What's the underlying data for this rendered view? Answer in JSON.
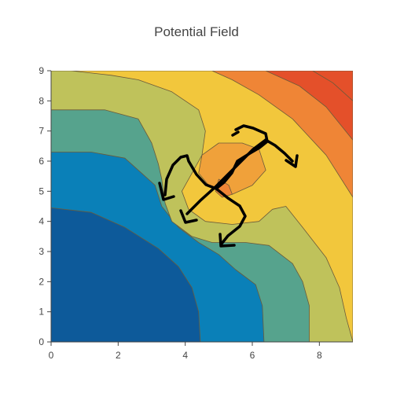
{
  "chart_data": {
    "type": "contour",
    "title": "Potential Field",
    "xlabel": "",
    "ylabel": "",
    "xlim": [
      0,
      9
    ],
    "ylim": [
      0,
      9
    ],
    "x_ticks": [
      0,
      2,
      4,
      6,
      8
    ],
    "y_ticks": [
      0,
      1,
      2,
      3,
      4,
      5,
      6,
      7,
      8,
      9
    ],
    "colorscale": [
      "#0d5a9a",
      "#0a80b8",
      "#56a38d",
      "#bfc25b",
      "#f2c73c",
      "#f0a13a",
      "#ef8536",
      "#e4502a"
    ],
    "contour_line_color": "#6b5a3a",
    "contours": [
      {
        "level": 1,
        "points": [
          [
            0,
            9
          ],
          [
            9,
            9
          ],
          [
            9,
            0
          ],
          [
            4.45,
            0
          ],
          [
            4.4,
            1
          ],
          [
            4.2,
            1.8
          ],
          [
            3.8,
            2.5
          ],
          [
            3.2,
            3.1
          ],
          [
            2.2,
            3.8
          ],
          [
            1.2,
            4.3
          ],
          [
            0,
            4.45
          ]
        ]
      },
      {
        "level": 2,
        "points": [
          [
            0,
            9
          ],
          [
            9,
            9
          ],
          [
            9,
            0
          ],
          [
            6.35,
            0
          ],
          [
            6.3,
            1.2
          ],
          [
            6.1,
            1.9
          ],
          [
            5.5,
            2.4
          ],
          [
            5.0,
            2.9
          ],
          [
            4.4,
            3.3
          ],
          [
            3.8,
            3.8
          ],
          [
            3.3,
            4.5
          ],
          [
            3.1,
            5.2
          ],
          [
            2.2,
            6.1
          ],
          [
            1.2,
            6.3
          ],
          [
            0,
            6.3
          ]
        ]
      },
      {
        "level": 3,
        "points": [
          [
            0,
            9
          ],
          [
            9,
            9
          ],
          [
            9,
            0
          ],
          [
            7.7,
            0
          ],
          [
            7.7,
            1.2
          ],
          [
            7.5,
            2.0
          ],
          [
            7.2,
            2.6
          ],
          [
            6.5,
            3.2
          ],
          [
            5.8,
            3.3
          ],
          [
            5.3,
            3.3
          ],
          [
            4.8,
            3.3
          ],
          [
            4.2,
            3.5
          ],
          [
            3.6,
            4.0
          ],
          [
            3.4,
            4.6
          ],
          [
            3.3,
            5.4
          ],
          [
            3.2,
            5.9
          ],
          [
            3.0,
            6.6
          ],
          [
            2.6,
            7.4
          ],
          [
            1.6,
            7.7
          ],
          [
            0,
            7.7
          ]
        ]
      },
      {
        "level": 4,
        "points": [
          [
            0.6,
            9
          ],
          [
            9,
            9
          ],
          [
            9,
            0
          ],
          [
            8.8,
            0.8
          ],
          [
            8.6,
            1.8
          ],
          [
            8.2,
            2.8
          ],
          [
            7.5,
            3.8
          ],
          [
            7.0,
            4.5
          ],
          [
            6.6,
            4.4
          ],
          [
            6.2,
            4.0
          ],
          [
            5.4,
            3.9
          ],
          [
            4.6,
            4.0
          ],
          [
            4.1,
            4.4
          ],
          [
            3.9,
            5.0
          ],
          [
            4.2,
            5.6
          ],
          [
            4.5,
            6.2
          ],
          [
            4.6,
            7.0
          ],
          [
            4.4,
            7.7
          ],
          [
            3.6,
            8.3
          ],
          [
            2.6,
            8.7
          ],
          [
            1.8,
            8.85
          ],
          [
            0.6,
            9
          ]
        ]
      },
      {
        "level": 5,
        "points": [
          [
            6.0,
            5.2
          ],
          [
            6.4,
            5.7
          ],
          [
            6.2,
            6.4
          ],
          [
            5.7,
            6.6
          ],
          [
            5.0,
            6.6
          ],
          [
            4.5,
            6.2
          ],
          [
            4.4,
            5.6
          ],
          [
            4.7,
            5.2
          ],
          [
            5.4,
            4.9
          ]
        ]
      },
      {
        "level": 6,
        "points": [
          [
            5.0,
            5.4
          ],
          [
            5.3,
            5.2
          ],
          [
            5.4,
            4.9
          ],
          [
            5.1,
            4.8
          ],
          [
            4.9,
            5.0
          ]
        ]
      },
      {
        "level": 6,
        "points": [
          [
            4.8,
            9
          ],
          [
            9,
            9
          ],
          [
            9,
            4.8
          ],
          [
            8.2,
            6.2
          ],
          [
            7.2,
            7.4
          ],
          [
            6.2,
            8.2
          ],
          [
            5.4,
            8.7
          ]
        ]
      },
      {
        "level": 7,
        "points": [
          [
            6.4,
            9
          ],
          [
            9,
            9
          ],
          [
            9,
            6.7
          ],
          [
            8.2,
            7.8
          ],
          [
            7.4,
            8.5
          ]
        ]
      },
      {
        "level": 8,
        "points": [
          [
            7.8,
            9
          ],
          [
            9,
            9
          ],
          [
            9,
            8.0
          ],
          [
            8.4,
            8.6
          ]
        ]
      }
    ],
    "annotations": [
      {
        "type": "freehand-arrows",
        "color": "#000000"
      }
    ]
  }
}
